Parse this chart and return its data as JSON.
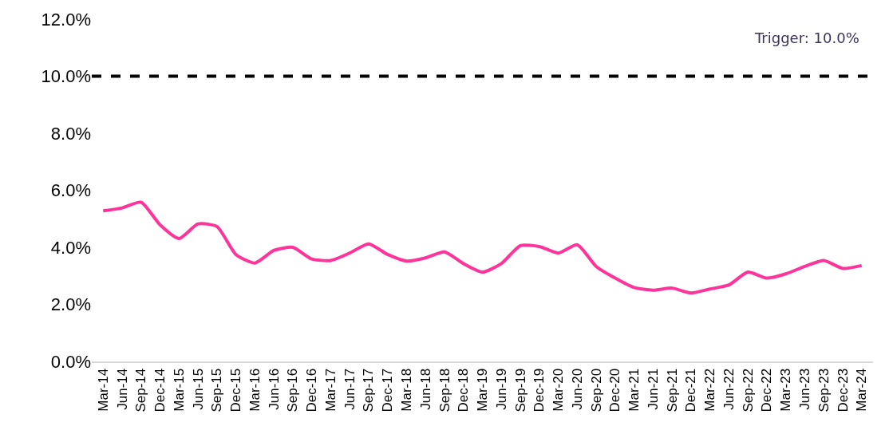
{
  "chart_data": {
    "type": "line",
    "categories": [
      "Mar-14",
      "Jun-14",
      "Sep-14",
      "Dec-14",
      "Mar-15",
      "Jun-15",
      "Sep-15",
      "Dec-15",
      "Mar-16",
      "Jun-16",
      "Sep-16",
      "Dec-16",
      "Mar-17",
      "Jun-17",
      "Sep-17",
      "Dec-17",
      "Mar-18",
      "Jun-18",
      "Sep-18",
      "Dec-18",
      "Mar-19",
      "Jun-19",
      "Sep-19",
      "Dec-19",
      "Mar-20",
      "Jun-20",
      "Sep-20",
      "Dec-20",
      "Mar-21",
      "Jun-21",
      "Sep-21",
      "Dec-21",
      "Mar-22",
      "Jun-22",
      "Sep-22",
      "Dec-22",
      "Mar-23",
      "Jun-23",
      "Sep-23",
      "Dec-23",
      "Mar-24"
    ],
    "series": [
      {
        "color": "#ff3399",
        "values": [
          5.28,
          5.38,
          5.58,
          4.79,
          4.31,
          4.82,
          4.73,
          3.75,
          3.45,
          3.89,
          4.0,
          3.59,
          3.54,
          3.8,
          4.12,
          3.75,
          3.52,
          3.63,
          3.84,
          3.43,
          3.13,
          3.43,
          4.06,
          4.03,
          3.8,
          4.09,
          3.33,
          2.92,
          2.59,
          2.5,
          2.57,
          2.4,
          2.54,
          2.68,
          3.13,
          2.92,
          3.07,
          3.33,
          3.54,
          3.26,
          3.36
        ]
      }
    ],
    "ylim": [
      0,
      12
    ],
    "yticks": [
      {
        "value": 0,
        "label": "0.0%"
      },
      {
        "value": 2,
        "label": "2.0%"
      },
      {
        "value": 4,
        "label": "4.0%"
      },
      {
        "value": 6,
        "label": "6.0%"
      },
      {
        "value": 8,
        "label": "8.0%"
      },
      {
        "value": 10,
        "label": "10.0%"
      },
      {
        "value": 12,
        "label": "12.0%"
      }
    ],
    "ref_lines": [
      {
        "axis": "y",
        "value": 10,
        "label": "Trigger: 10.0%",
        "color": "#000000",
        "line_style": "dashed"
      }
    ],
    "grid": false,
    "marker": "none",
    "line_style": "solid"
  }
}
